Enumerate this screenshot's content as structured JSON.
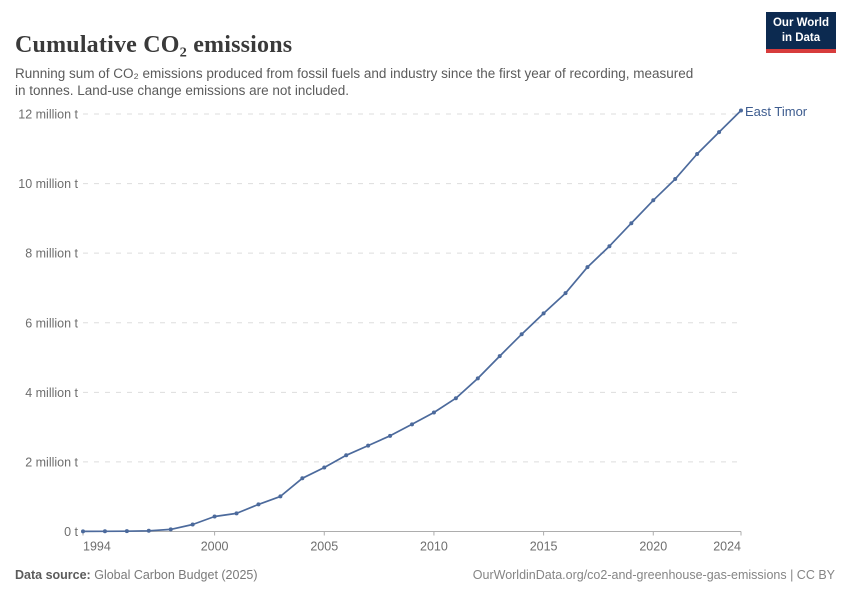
{
  "header": {
    "title": "Cumulative CO₂ emissions",
    "subtitle": "Running sum of CO₂ emissions produced from fossil fuels and industry since the first year of recording, measured in tonnes. Land-use change emissions are not included.",
    "logo": {
      "line1": "Our World",
      "line2": "in Data"
    }
  },
  "footer": {
    "source_label": "Data source:",
    "source_value": "Global Carbon Budget (2025)",
    "credit": "OurWorldinData.org/co2-and-greenhouse-gas-emissions | CC BY"
  },
  "chart_data": {
    "type": "line",
    "title": "Cumulative CO₂ emissions",
    "unit": "tonnes",
    "series_label": "East Timor",
    "x": [
      1994,
      1995,
      1996,
      1997,
      1998,
      1999,
      2000,
      2001,
      2002,
      2003,
      2004,
      2005,
      2006,
      2007,
      2008,
      2009,
      2010,
      2011,
      2012,
      2013,
      2014,
      2015,
      2016,
      2017,
      2018,
      2019,
      2020,
      2021,
      2022,
      2023,
      2024
    ],
    "values_million_t": [
      0.003,
      0.006,
      0.01,
      0.02,
      0.06,
      0.2,
      0.43,
      0.52,
      0.78,
      1.01,
      1.53,
      1.84,
      2.19,
      2.47,
      2.75,
      3.08,
      3.42,
      3.83,
      4.4,
      5.04,
      5.67,
      6.27,
      6.85,
      7.6,
      8.2,
      8.86,
      9.52,
      10.13,
      10.85,
      11.48,
      12.1
    ],
    "ylim": [
      0,
      12
    ],
    "ytick_interval": 2,
    "ytick_labels": [
      "0 t",
      "2 million t",
      "4 million t",
      "6 million t",
      "8 million t",
      "10 million t",
      "12 million t"
    ],
    "xticks": [
      1994,
      2000,
      2005,
      2010,
      2015,
      2020,
      2024
    ],
    "grid": true,
    "legend_position": "end-of-line",
    "colors": {
      "line": "#4c6a9c",
      "point": "#4c6a9c",
      "entity_label": "#3d5c8f",
      "grid": "#dddddd",
      "axis": "#adadad",
      "tick_text": "#6e6e6e"
    }
  }
}
